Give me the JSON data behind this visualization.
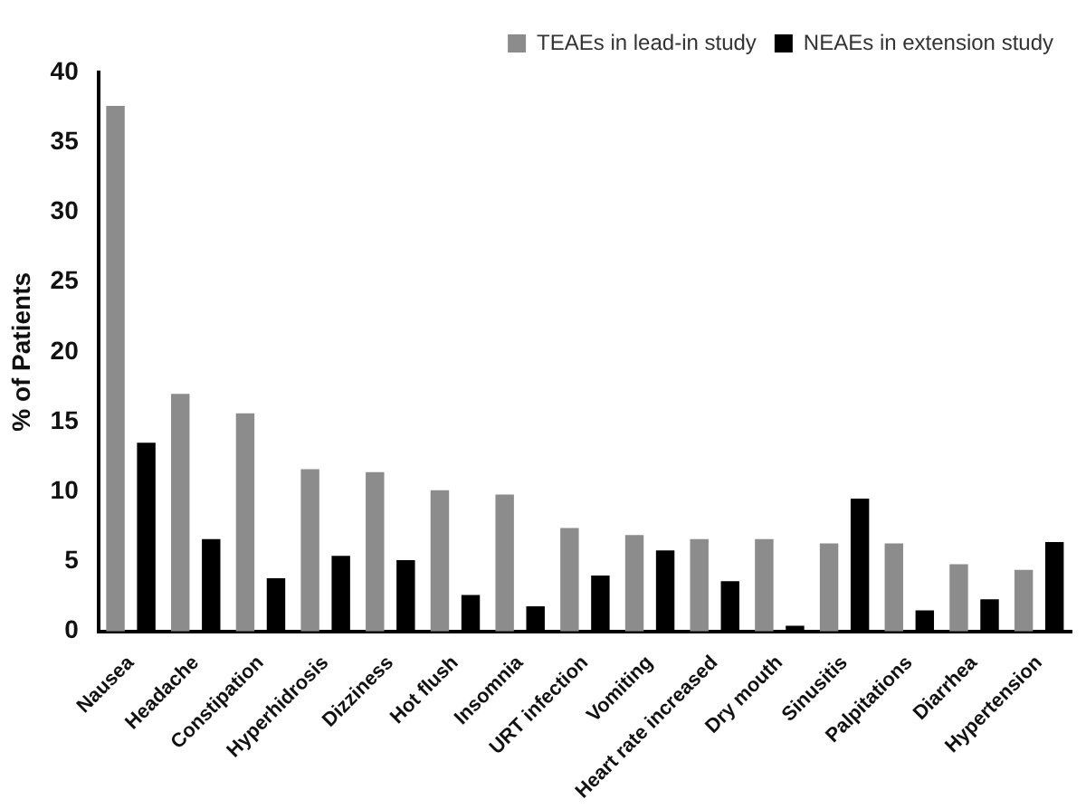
{
  "chart_data": {
    "type": "bar",
    "ylabel": "% of Patients",
    "categories": [
      "Nausea",
      "Headache",
      "Constipation",
      "Hyperhidrosis",
      "Dizziness",
      "Hot flush",
      "Insomnia",
      "URT infection",
      "Vomiting",
      "Heart rate increased",
      "Dry mouth",
      "Sinusitis",
      "Palpitations",
      "Diarrhea",
      "Hypertension"
    ],
    "series": [
      {
        "name": "TEAEs in lead-in study",
        "color": "#8c8c8c",
        "values": [
          37.6,
          17,
          15.6,
          11.6,
          11.4,
          10.1,
          9.8,
          7.4,
          6.9,
          6.6,
          6.6,
          6.3,
          6.3,
          4.8,
          4.4
        ]
      },
      {
        "name": "NEAEs in extension study",
        "color": "#000000",
        "values": [
          13.5,
          6.6,
          3.8,
          5.4,
          5.1,
          2.6,
          1.8,
          4,
          5.8,
          3.6,
          0.4,
          9.5,
          1.5,
          2.3,
          6.4
        ]
      }
    ],
    "ylim": [
      0,
      40
    ],
    "yticks": [
      0,
      5,
      10,
      15,
      20,
      25,
      30,
      35,
      40
    ],
    "grid": false,
    "legend": "top right"
  }
}
